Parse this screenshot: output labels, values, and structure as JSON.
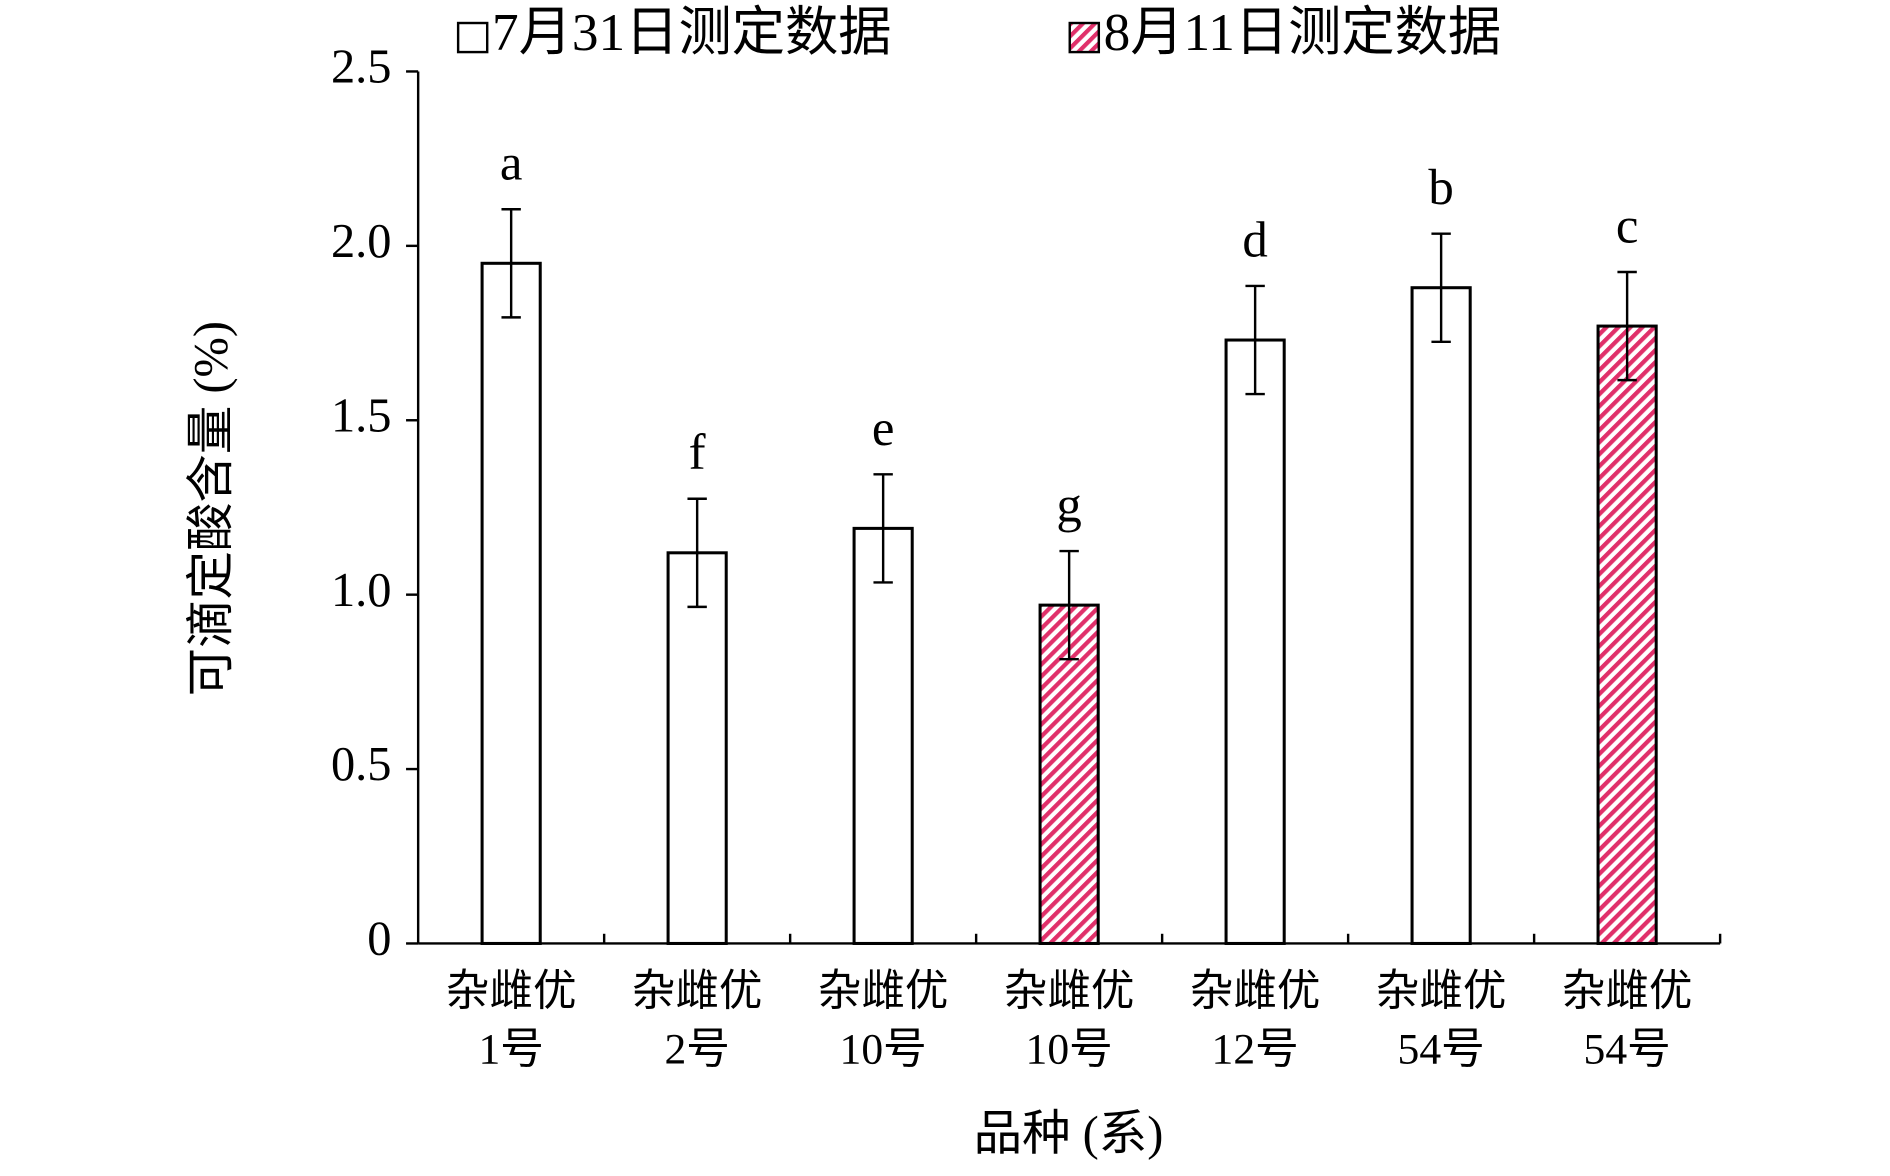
{
  "chart_data": {
    "type": "bar",
    "y_label": "可滴定酸含量 (%)",
    "x_label": "品种 (系)",
    "categories": [
      [
        "杂雌优",
        "1号"
      ],
      [
        "杂雌优",
        "2号"
      ],
      [
        "杂雌优",
        "10号"
      ],
      [
        "杂雌优",
        "10号"
      ],
      [
        "杂雌优",
        "12号"
      ],
      [
        "杂雌优",
        "54号"
      ],
      [
        "杂雌优",
        "54号"
      ]
    ],
    "series": [
      {
        "name": "7月31日测定数据",
        "color": "#ffffff",
        "values": [
          1.95,
          1.12,
          1.19,
          null,
          1.73,
          1.88,
          null
        ],
        "errors": [
          0.155,
          0.155,
          0.155,
          null,
          0.155,
          0.155,
          null
        ]
      },
      {
        "name": "8月11日测定数据",
        "color": "#e0306a",
        "hatch": true,
        "values": [
          null,
          null,
          null,
          0.97,
          null,
          null,
          1.77
        ],
        "errors": [
          null,
          null,
          null,
          0.155,
          null,
          null,
          0.155
        ]
      }
    ],
    "annotations": [
      "a",
      "f",
      "e",
      "g",
      "d",
      "b",
      "c"
    ],
    "ylim": [
      0,
      2.5
    ],
    "yticks": [
      0,
      0.5,
      {
        "value": 1,
        "label": "1.0"
      },
      1.5,
      {
        "value": 2,
        "label": "2.0"
      },
      2.5
    ]
  }
}
